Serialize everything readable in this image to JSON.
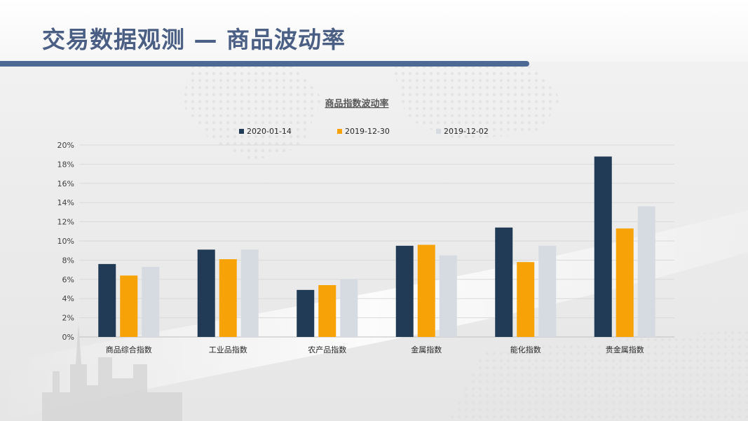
{
  "page": {
    "title": "交易数据观测 — 商品波动率"
  },
  "colors": {
    "title": "#4a5f83",
    "rule": "#4d6a95"
  },
  "chart_data": {
    "type": "bar",
    "title": "商品指数波动率",
    "categories": [
      "商品综合指数",
      "工业品指数",
      "农产品指数",
      "金属指数",
      "能化指数",
      "贵金属指数"
    ],
    "series": [
      {
        "name": "2020-01-14",
        "color": "#213a55",
        "values": [
          7.6,
          9.1,
          4.9,
          9.5,
          11.4,
          18.8
        ]
      },
      {
        "name": "2019-12-30",
        "color": "#f7a308",
        "values": [
          6.4,
          8.1,
          5.4,
          9.6,
          7.8,
          11.3
        ]
      },
      {
        "name": "2019-12-02",
        "color": "#d6dbe2",
        "values": [
          7.3,
          9.1,
          6.0,
          8.5,
          9.5,
          13.6
        ]
      }
    ],
    "ylim": [
      0,
      20
    ],
    "yticks": [
      "0%",
      "2%",
      "4%",
      "6%",
      "8%",
      "10%",
      "12%",
      "14%",
      "16%",
      "18%",
      "20%"
    ],
    "ytick_values": [
      0,
      2,
      4,
      6,
      8,
      10,
      12,
      14,
      16,
      18,
      20
    ],
    "grid": true,
    "legend_position": "top"
  }
}
